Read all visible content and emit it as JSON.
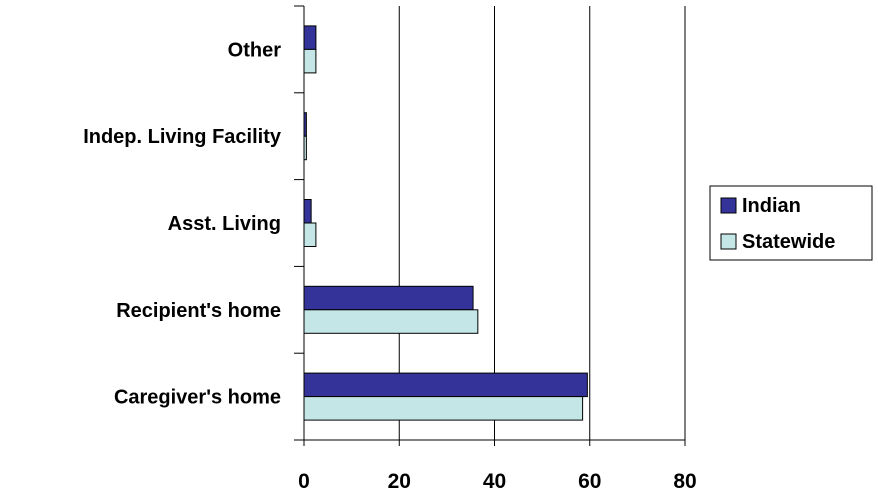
{
  "chart_data": {
    "type": "bar",
    "orientation": "horizontal",
    "categories": [
      "Caregiver's home",
      "Recipient's home",
      "Asst. Living",
      "Indep. Living Facility",
      "Other"
    ],
    "series": [
      {
        "name": "Indian",
        "values": [
          59.5,
          35.5,
          1.5,
          0.5,
          2.5
        ],
        "color": "#333399"
      },
      {
        "name": "Statewide",
        "values": [
          58.5,
          36.5,
          2.5,
          0.5,
          2.5
        ],
        "color": "#c4e6e6"
      }
    ],
    "x_ticks": [
      "0",
      "20",
      "40",
      "60",
      "80"
    ],
    "xlim": [
      0,
      80
    ],
    "grid": "vertical",
    "legend_position": "right"
  }
}
